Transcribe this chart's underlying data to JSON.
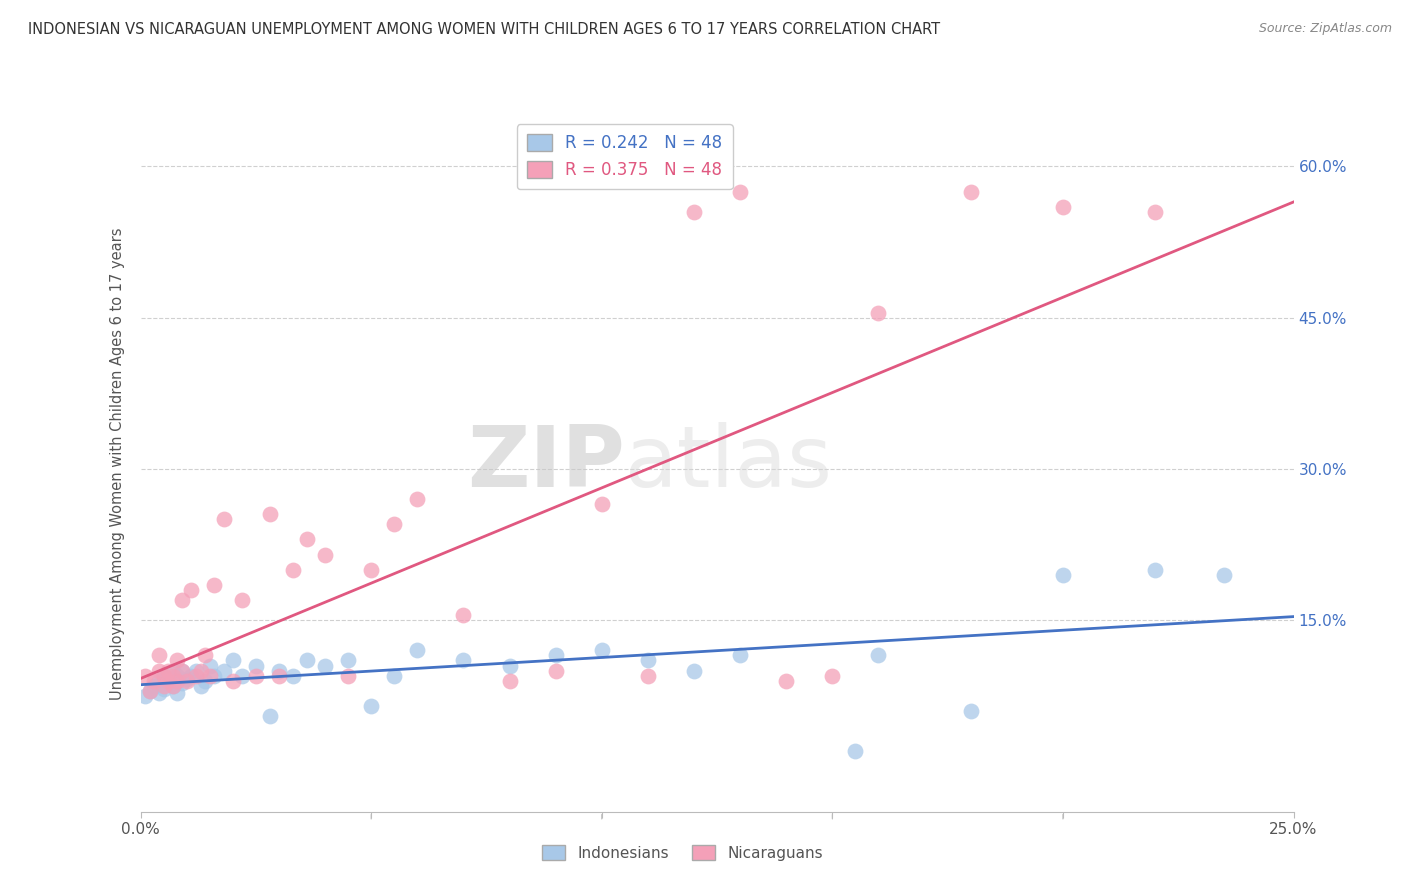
{
  "title": "INDONESIAN VS NICARAGUAN UNEMPLOYMENT AMONG WOMEN WITH CHILDREN AGES 6 TO 17 YEARS CORRELATION CHART",
  "source": "Source: ZipAtlas.com",
  "ylabel": "Unemployment Among Women with Children Ages 6 to 17 years",
  "xlim": [
    0.0,
    0.25
  ],
  "ylim": [
    -0.04,
    0.65
  ],
  "yticks": [
    0.15,
    0.3,
    0.45,
    0.6
  ],
  "ytick_labels": [
    "15.0%",
    "30.0%",
    "45.0%",
    "60.0%"
  ],
  "indonesian_color": "#a8c8e8",
  "nicaraguan_color": "#f4a0b8",
  "indonesian_line_color": "#4472c4",
  "nicaraguan_line_color": "#e05880",
  "grid_color": "#d0d0d0",
  "background_color": "#ffffff",
  "watermark_zip": "ZIP",
  "watermark_atlas": "atlas",
  "title_color": "#333333",
  "indonesian_R": 0.242,
  "nicaraguan_R": 0.375,
  "N": 48,
  "indonesian_x": [
    0.001,
    0.002,
    0.003,
    0.004,
    0.004,
    0.005,
    0.005,
    0.006,
    0.006,
    0.007,
    0.007,
    0.008,
    0.008,
    0.009,
    0.009,
    0.01,
    0.011,
    0.012,
    0.013,
    0.014,
    0.015,
    0.016,
    0.018,
    0.02,
    0.022,
    0.025,
    0.028,
    0.03,
    0.033,
    0.036,
    0.04,
    0.045,
    0.05,
    0.055,
    0.06,
    0.07,
    0.08,
    0.09,
    0.1,
    0.11,
    0.12,
    0.13,
    0.155,
    0.16,
    0.18,
    0.2,
    0.22,
    0.235
  ],
  "indonesian_y": [
    0.075,
    0.08,
    0.085,
    0.078,
    0.09,
    0.082,
    0.095,
    0.088,
    0.092,
    0.085,
    0.1,
    0.078,
    0.095,
    0.088,
    0.1,
    0.092,
    0.095,
    0.1,
    0.085,
    0.09,
    0.105,
    0.095,
    0.1,
    0.11,
    0.095,
    0.105,
    0.055,
    0.1,
    0.095,
    0.11,
    0.105,
    0.11,
    0.065,
    0.095,
    0.12,
    0.11,
    0.105,
    0.115,
    0.12,
    0.11,
    0.1,
    0.115,
    0.02,
    0.115,
    0.06,
    0.195,
    0.2,
    0.195
  ],
  "nicaraguan_x": [
    0.001,
    0.002,
    0.003,
    0.004,
    0.004,
    0.005,
    0.005,
    0.006,
    0.006,
    0.007,
    0.007,
    0.008,
    0.008,
    0.009,
    0.009,
    0.01,
    0.011,
    0.012,
    0.013,
    0.014,
    0.015,
    0.016,
    0.018,
    0.02,
    0.022,
    0.025,
    0.028,
    0.03,
    0.033,
    0.036,
    0.04,
    0.045,
    0.05,
    0.055,
    0.06,
    0.07,
    0.08,
    0.09,
    0.1,
    0.11,
    0.12,
    0.13,
    0.14,
    0.15,
    0.16,
    0.18,
    0.2,
    0.22
  ],
  "nicaraguan_y": [
    0.095,
    0.08,
    0.09,
    0.1,
    0.115,
    0.085,
    0.095,
    0.09,
    0.1,
    0.085,
    0.095,
    0.11,
    0.09,
    0.1,
    0.17,
    0.09,
    0.18,
    0.095,
    0.1,
    0.115,
    0.095,
    0.185,
    0.25,
    0.09,
    0.17,
    0.095,
    0.255,
    0.095,
    0.2,
    0.23,
    0.215,
    0.095,
    0.2,
    0.245,
    0.27,
    0.155,
    0.09,
    0.1,
    0.265,
    0.095,
    0.555,
    0.575,
    0.09,
    0.095,
    0.455,
    0.575,
    0.56,
    0.555
  ]
}
